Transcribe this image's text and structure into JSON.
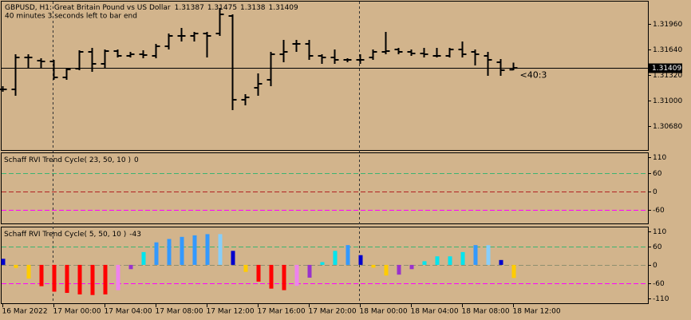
{
  "chart_data": [
    {
      "type": "ohlc",
      "title": "GBPUSD, H1:  Great Britain Pound vs US Dollar",
      "subtitle": "40 minutes 3 seconds left to bar end",
      "countdown": "<40:3",
      "color": "#000000",
      "categories": [
        "16 Mar 2022",
        null,
        null,
        null,
        "17 Mar 00:00",
        null,
        null,
        null,
        "17 Mar 04:00",
        null,
        null,
        null,
        "17 Mar 08:00",
        null,
        null,
        null,
        "17 Mar 12:00",
        null,
        null,
        null,
        "17 Mar 16:00",
        null,
        null,
        null,
        "17 Mar 20:00",
        null,
        null,
        null,
        "18 Mar 00:00",
        null,
        null,
        null,
        "18 Mar 04:00",
        null,
        null,
        null,
        "18 Mar 08:00",
        null,
        null,
        null,
        "18 Mar 12:00"
      ],
      "open": [
        1.3114,
        1.3114,
        1.3154,
        1.315,
        1.3149,
        1.3129,
        1.314,
        1.3161,
        1.3146,
        1.3162,
        1.3156,
        1.3158,
        1.3156,
        1.3168,
        1.3181,
        1.3181,
        1.3184,
        1.3184,
        1.3206,
        1.3101,
        1.3116,
        1.3126,
        1.3158,
        1.3171,
        1.3171,
        1.3156,
        1.3154,
        1.3151,
        1.3151,
        1.3154,
        1.3161,
        1.3164,
        1.3161,
        1.3159,
        1.3156,
        1.3156,
        1.3164,
        1.3161,
        1.3156,
        1.3148,
        1.31387
      ],
      "high": [
        1.3118,
        1.3158,
        1.3158,
        1.3153,
        1.3151,
        1.3141,
        1.3163,
        1.3166,
        1.3164,
        1.3164,
        1.3161,
        1.3163,
        1.3171,
        1.3184,
        1.3191,
        1.3186,
        1.3186,
        1.3216,
        1.3208,
        1.3108,
        1.3134,
        1.3161,
        1.3176,
        1.3176,
        1.3176,
        1.3158,
        1.3164,
        1.3153,
        1.3158,
        1.3164,
        1.3186,
        1.3166,
        1.3164,
        1.3166,
        1.3166,
        1.3166,
        1.3174,
        1.3164,
        1.3161,
        1.3152,
        1.31475
      ],
      "low": [
        1.3111,
        1.3106,
        1.3141,
        1.3141,
        1.3126,
        1.3126,
        1.3138,
        1.3136,
        1.3141,
        1.3154,
        1.3154,
        1.3153,
        1.3153,
        1.3164,
        1.3174,
        1.3174,
        1.3154,
        1.3181,
        1.3088,
        1.3094,
        1.3106,
        1.3118,
        1.3148,
        1.3161,
        1.3151,
        1.3146,
        1.3146,
        1.3148,
        1.3146,
        1.3151,
        1.3158,
        1.3158,
        1.3156,
        1.3154,
        1.3154,
        1.3154,
        1.3154,
        1.3144,
        1.3131,
        1.3131,
        1.3138
      ],
      "close": [
        1.3114,
        1.3154,
        1.3154,
        1.3149,
        1.3129,
        1.3139,
        1.3161,
        1.3146,
        1.3162,
        1.3156,
        1.3158,
        1.3157,
        1.3168,
        1.3181,
        1.3181,
        1.3184,
        1.3181,
        1.3208,
        1.3101,
        1.3104,
        1.3121,
        1.3158,
        1.3161,
        1.3171,
        1.3156,
        1.3154,
        1.3151,
        1.3151,
        1.3151,
        1.3161,
        1.3162,
        1.3161,
        1.3159,
        1.3158,
        1.3156,
        1.3164,
        1.3158,
        1.3158,
        1.3151,
        1.3138,
        1.31409
      ],
      "ylim": [
        1.3038,
        1.3224
      ],
      "yticks": [
        {
          "value": 1.3196,
          "label": "1.31960"
        },
        {
          "value": 1.3164,
          "label": "1.31640"
        },
        {
          "value": 1.3132,
          "label": "1.31320"
        },
        {
          "value": 1.31,
          "label": "1.31000"
        },
        {
          "value": 1.3068,
          "label": "1.30680"
        }
      ]
    },
    {
      "type": "bar",
      "title": "Schaff RVI Trend Cycle( 23, 50, 10 )",
      "last_value": 0,
      "values": [],
      "ylim": [
        -103,
        124
      ],
      "yticks": [
        110,
        60,
        0,
        -60
      ],
      "levels": [
        60,
        0,
        -60
      ],
      "level_colors": [
        "#3cb371",
        "#b22222",
        "#ff00ff"
      ]
    },
    {
      "type": "bar",
      "title": "Schaff RVI Trend Cycle( 5, 50, 10 )",
      "values": [
        20,
        -10,
        -45,
        -70,
        -88,
        -92,
        -97,
        -99,
        -97,
        -83,
        -14,
        42,
        74,
        85,
        92,
        97,
        101,
        101,
        46,
        -23,
        -55,
        -78,
        -83,
        -69,
        -42,
        9,
        46,
        65,
        32,
        -9,
        -35,
        -32,
        -14,
        12,
        28,
        28,
        42,
        65,
        65,
        16,
        -43
      ],
      "colors": [
        "#0000cd",
        "#ffcc00",
        "#ffcc00",
        "#ff0000",
        "#ff0000",
        "#ff0000",
        "#ff0000",
        "#ff0000",
        "#ff0000",
        "#ee82ee",
        "#9932cc",
        "#00e5ee",
        "#3399ff",
        "#3399ff",
        "#3399ff",
        "#3399ff",
        "#3399ff",
        "#87cefa",
        "#0000cd",
        "#ffcc00",
        "#ff0000",
        "#ff0000",
        "#ff0000",
        "#ee82ee",
        "#9932cc",
        "#00e5ee",
        "#00e5ee",
        "#3399ff",
        "#0000cd",
        "#ffcc00",
        "#ffcc00",
        "#9932cc",
        "#9932cc",
        "#00e5ee",
        "#00e5ee",
        "#00e5ee",
        "#00e5ee",
        "#3399ff",
        "#87cefa",
        "#0000cd",
        "#ffcc00"
      ],
      "ylim": [
        -126,
        123
      ],
      "yticks": [
        110,
        60,
        0,
        -60,
        -110
      ],
      "levels": [
        60,
        0,
        -60
      ],
      "level_colors": [
        "#3cb371",
        "#8f8f6f",
        "#ff00ff"
      ]
    }
  ]
}
